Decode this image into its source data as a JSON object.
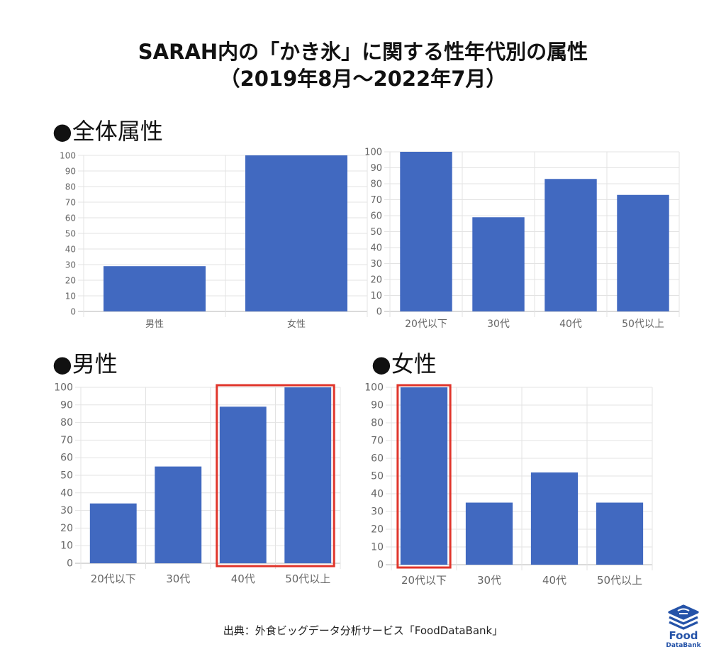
{
  "title": {
    "line1": "SARAH内の「かき氷」に関する性年代別の属性",
    "line2": "（2019年8月〜2022年7月）"
  },
  "sections": {
    "overall": "●全体属性",
    "male": "●男性",
    "female": "●女性"
  },
  "footer": "出典：外食ビッグデータ分析サービス「FoodDataBank」",
  "logo": {
    "main": "Food",
    "sub": "DataBank"
  },
  "colors": {
    "bar": "#4169c0",
    "highlight": "#e0352b",
    "grid": "#e3e3e3",
    "axis": "#666666"
  },
  "chart_data": [
    {
      "id": "overall-gender",
      "type": "bar",
      "title": "全体属性",
      "categories": [
        "男性",
        "女性"
      ],
      "values": [
        29,
        100
      ],
      "ylim": [
        0,
        100
      ],
      "yticks": [
        0,
        10,
        20,
        30,
        40,
        50,
        60,
        70,
        80,
        90,
        100
      ],
      "highlight": []
    },
    {
      "id": "overall-age",
      "type": "bar",
      "title": "",
      "categories": [
        "20代以下",
        "30代",
        "40代",
        "50代以上"
      ],
      "values": [
        100,
        59,
        83,
        73
      ],
      "ylim": [
        0,
        100
      ],
      "yticks": [
        0,
        10,
        20,
        30,
        40,
        50,
        60,
        70,
        80,
        90,
        100
      ],
      "highlight": []
    },
    {
      "id": "male-age",
      "type": "bar",
      "title": "男性",
      "categories": [
        "20代以下",
        "30代",
        "40代",
        "50代以上"
      ],
      "values": [
        34,
        55,
        89,
        100
      ],
      "ylim": [
        0,
        100
      ],
      "yticks": [
        0,
        10,
        20,
        30,
        40,
        50,
        60,
        70,
        80,
        90,
        100
      ],
      "highlight": [
        2,
        3
      ]
    },
    {
      "id": "female-age",
      "type": "bar",
      "title": "女性",
      "categories": [
        "20代以下",
        "30代",
        "40代",
        "50代以上"
      ],
      "values": [
        100,
        35,
        52,
        35
      ],
      "ylim": [
        0,
        100
      ],
      "yticks": [
        0,
        10,
        20,
        30,
        40,
        50,
        60,
        70,
        80,
        90,
        100
      ],
      "highlight": [
        0
      ]
    }
  ]
}
